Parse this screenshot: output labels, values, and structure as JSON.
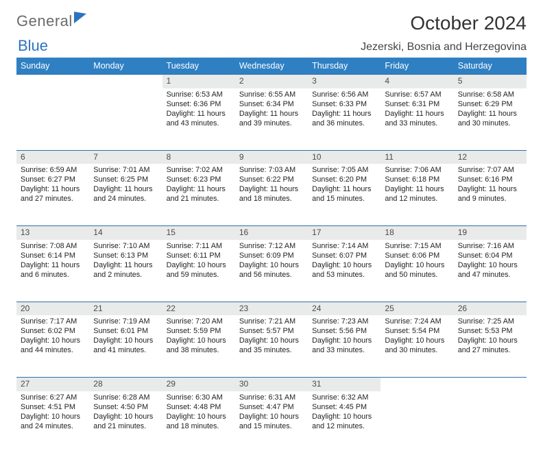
{
  "logo": {
    "line1": "General",
    "line2": "Blue"
  },
  "title": "October 2024",
  "location": "Jezerski, Bosnia and Herzegovina",
  "colors": {
    "header_bg": "#2f80c3",
    "header_fg": "#ffffff",
    "daynum_bg": "#e9eaea",
    "rule": "#2f6ea8"
  },
  "daysOfWeek": [
    "Sunday",
    "Monday",
    "Tuesday",
    "Wednesday",
    "Thursday",
    "Friday",
    "Saturday"
  ],
  "weeks": [
    [
      null,
      null,
      {
        "n": "1",
        "sr": "Sunrise: 6:53 AM",
        "ss": "Sunset: 6:36 PM",
        "d1": "Daylight: 11 hours",
        "d2": "and 43 minutes."
      },
      {
        "n": "2",
        "sr": "Sunrise: 6:55 AM",
        "ss": "Sunset: 6:34 PM",
        "d1": "Daylight: 11 hours",
        "d2": "and 39 minutes."
      },
      {
        "n": "3",
        "sr": "Sunrise: 6:56 AM",
        "ss": "Sunset: 6:33 PM",
        "d1": "Daylight: 11 hours",
        "d2": "and 36 minutes."
      },
      {
        "n": "4",
        "sr": "Sunrise: 6:57 AM",
        "ss": "Sunset: 6:31 PM",
        "d1": "Daylight: 11 hours",
        "d2": "and 33 minutes."
      },
      {
        "n": "5",
        "sr": "Sunrise: 6:58 AM",
        "ss": "Sunset: 6:29 PM",
        "d1": "Daylight: 11 hours",
        "d2": "and 30 minutes."
      }
    ],
    [
      {
        "n": "6",
        "sr": "Sunrise: 6:59 AM",
        "ss": "Sunset: 6:27 PM",
        "d1": "Daylight: 11 hours",
        "d2": "and 27 minutes."
      },
      {
        "n": "7",
        "sr": "Sunrise: 7:01 AM",
        "ss": "Sunset: 6:25 PM",
        "d1": "Daylight: 11 hours",
        "d2": "and 24 minutes."
      },
      {
        "n": "8",
        "sr": "Sunrise: 7:02 AM",
        "ss": "Sunset: 6:23 PM",
        "d1": "Daylight: 11 hours",
        "d2": "and 21 minutes."
      },
      {
        "n": "9",
        "sr": "Sunrise: 7:03 AM",
        "ss": "Sunset: 6:22 PM",
        "d1": "Daylight: 11 hours",
        "d2": "and 18 minutes."
      },
      {
        "n": "10",
        "sr": "Sunrise: 7:05 AM",
        "ss": "Sunset: 6:20 PM",
        "d1": "Daylight: 11 hours",
        "d2": "and 15 minutes."
      },
      {
        "n": "11",
        "sr": "Sunrise: 7:06 AM",
        "ss": "Sunset: 6:18 PM",
        "d1": "Daylight: 11 hours",
        "d2": "and 12 minutes."
      },
      {
        "n": "12",
        "sr": "Sunrise: 7:07 AM",
        "ss": "Sunset: 6:16 PM",
        "d1": "Daylight: 11 hours",
        "d2": "and 9 minutes."
      }
    ],
    [
      {
        "n": "13",
        "sr": "Sunrise: 7:08 AM",
        "ss": "Sunset: 6:14 PM",
        "d1": "Daylight: 11 hours",
        "d2": "and 6 minutes."
      },
      {
        "n": "14",
        "sr": "Sunrise: 7:10 AM",
        "ss": "Sunset: 6:13 PM",
        "d1": "Daylight: 11 hours",
        "d2": "and 2 minutes."
      },
      {
        "n": "15",
        "sr": "Sunrise: 7:11 AM",
        "ss": "Sunset: 6:11 PM",
        "d1": "Daylight: 10 hours",
        "d2": "and 59 minutes."
      },
      {
        "n": "16",
        "sr": "Sunrise: 7:12 AM",
        "ss": "Sunset: 6:09 PM",
        "d1": "Daylight: 10 hours",
        "d2": "and 56 minutes."
      },
      {
        "n": "17",
        "sr": "Sunrise: 7:14 AM",
        "ss": "Sunset: 6:07 PM",
        "d1": "Daylight: 10 hours",
        "d2": "and 53 minutes."
      },
      {
        "n": "18",
        "sr": "Sunrise: 7:15 AM",
        "ss": "Sunset: 6:06 PM",
        "d1": "Daylight: 10 hours",
        "d2": "and 50 minutes."
      },
      {
        "n": "19",
        "sr": "Sunrise: 7:16 AM",
        "ss": "Sunset: 6:04 PM",
        "d1": "Daylight: 10 hours",
        "d2": "and 47 minutes."
      }
    ],
    [
      {
        "n": "20",
        "sr": "Sunrise: 7:17 AM",
        "ss": "Sunset: 6:02 PM",
        "d1": "Daylight: 10 hours",
        "d2": "and 44 minutes."
      },
      {
        "n": "21",
        "sr": "Sunrise: 7:19 AM",
        "ss": "Sunset: 6:01 PM",
        "d1": "Daylight: 10 hours",
        "d2": "and 41 minutes."
      },
      {
        "n": "22",
        "sr": "Sunrise: 7:20 AM",
        "ss": "Sunset: 5:59 PM",
        "d1": "Daylight: 10 hours",
        "d2": "and 38 minutes."
      },
      {
        "n": "23",
        "sr": "Sunrise: 7:21 AM",
        "ss": "Sunset: 5:57 PM",
        "d1": "Daylight: 10 hours",
        "d2": "and 35 minutes."
      },
      {
        "n": "24",
        "sr": "Sunrise: 7:23 AM",
        "ss": "Sunset: 5:56 PM",
        "d1": "Daylight: 10 hours",
        "d2": "and 33 minutes."
      },
      {
        "n": "25",
        "sr": "Sunrise: 7:24 AM",
        "ss": "Sunset: 5:54 PM",
        "d1": "Daylight: 10 hours",
        "d2": "and 30 minutes."
      },
      {
        "n": "26",
        "sr": "Sunrise: 7:25 AM",
        "ss": "Sunset: 5:53 PM",
        "d1": "Daylight: 10 hours",
        "d2": "and 27 minutes."
      }
    ],
    [
      {
        "n": "27",
        "sr": "Sunrise: 6:27 AM",
        "ss": "Sunset: 4:51 PM",
        "d1": "Daylight: 10 hours",
        "d2": "and 24 minutes."
      },
      {
        "n": "28",
        "sr": "Sunrise: 6:28 AM",
        "ss": "Sunset: 4:50 PM",
        "d1": "Daylight: 10 hours",
        "d2": "and 21 minutes."
      },
      {
        "n": "29",
        "sr": "Sunrise: 6:30 AM",
        "ss": "Sunset: 4:48 PM",
        "d1": "Daylight: 10 hours",
        "d2": "and 18 minutes."
      },
      {
        "n": "30",
        "sr": "Sunrise: 6:31 AM",
        "ss": "Sunset: 4:47 PM",
        "d1": "Daylight: 10 hours",
        "d2": "and 15 minutes."
      },
      {
        "n": "31",
        "sr": "Sunrise: 6:32 AM",
        "ss": "Sunset: 4:45 PM",
        "d1": "Daylight: 10 hours",
        "d2": "and 12 minutes."
      },
      null,
      null
    ]
  ]
}
